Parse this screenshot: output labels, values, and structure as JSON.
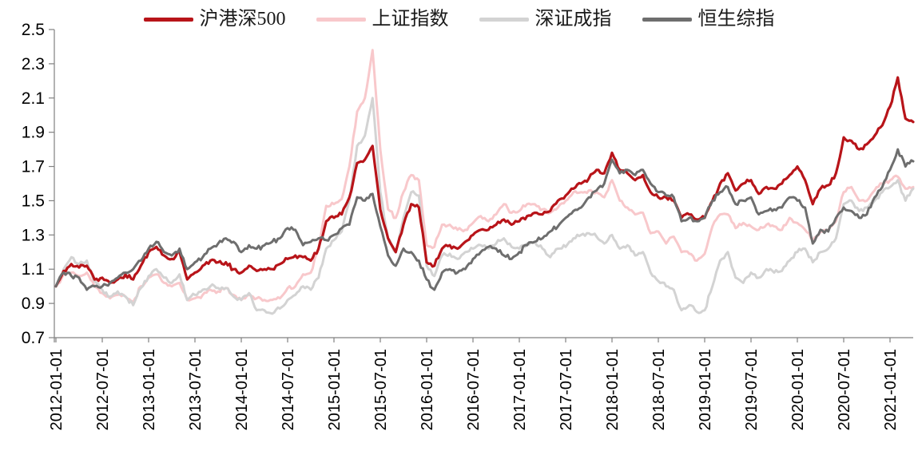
{
  "page": {
    "background": "#ffffff"
  },
  "chart_data": {
    "type": "line",
    "title": "",
    "xlabel": "",
    "ylabel": "",
    "grid": false,
    "legend_position": "top",
    "axis_color": "#808080",
    "tick_label_color": "#000000",
    "ylim": [
      0.7,
      2.5
    ],
    "y_tick_labels": [
      "2.5",
      "2.3",
      "2.1",
      "1.9",
      "1.7",
      "1.5",
      "1.3",
      "1.1",
      "0.9",
      "0.7"
    ],
    "x_tick_labels": [
      "2012-01-01",
      "2012-07-01",
      "2013-01-01",
      "2013-07-01",
      "2014-01-01",
      "2014-07-01",
      "2015-01-01",
      "2015-07-01",
      "2016-01-01",
      "2016-07-01",
      "2017-01-01",
      "2017-07-01",
      "2018-01-01",
      "2018-07-01",
      "2019-01-01",
      "2019-07-01",
      "2020-01-01",
      "2020-07-01",
      "2021-01-01"
    ],
    "x_unit": "monthly values starting 2012-01, all series normalized to 1.0 at 2012-01-01",
    "z_order": [
      1,
      2,
      0,
      3
    ],
    "series": [
      {
        "name": "沪港深500",
        "color": "#b81419",
        "values": [
          1.0,
          1.09,
          1.13,
          1.11,
          1.12,
          1.04,
          1.05,
          1.02,
          1.04,
          1.07,
          1.04,
          1.12,
          1.2,
          1.23,
          1.18,
          1.16,
          1.2,
          1.04,
          1.08,
          1.12,
          1.15,
          1.14,
          1.14,
          1.1,
          1.08,
          1.12,
          1.09,
          1.1,
          1.1,
          1.13,
          1.16,
          1.18,
          1.17,
          1.15,
          1.22,
          1.38,
          1.4,
          1.42,
          1.52,
          1.72,
          1.74,
          1.82,
          1.45,
          1.28,
          1.2,
          1.36,
          1.48,
          1.46,
          1.14,
          1.12,
          1.22,
          1.24,
          1.22,
          1.26,
          1.3,
          1.33,
          1.33,
          1.36,
          1.39,
          1.36,
          1.38,
          1.41,
          1.43,
          1.42,
          1.44,
          1.5,
          1.53,
          1.57,
          1.6,
          1.63,
          1.68,
          1.66,
          1.78,
          1.68,
          1.66,
          1.62,
          1.65,
          1.55,
          1.52,
          1.52,
          1.5,
          1.4,
          1.42,
          1.39,
          1.4,
          1.5,
          1.6,
          1.66,
          1.56,
          1.6,
          1.62,
          1.54,
          1.58,
          1.57,
          1.6,
          1.65,
          1.7,
          1.62,
          1.48,
          1.57,
          1.59,
          1.66,
          1.87,
          1.85,
          1.8,
          1.83,
          1.88,
          1.94,
          2.05,
          2.22,
          1.98,
          1.96
        ]
      },
      {
        "name": "上证指数",
        "color": "#f8c8cb",
        "values": [
          1.0,
          1.07,
          1.08,
          1.06,
          1.08,
          1.0,
          0.96,
          0.93,
          0.95,
          0.94,
          0.91,
          1.0,
          1.05,
          1.07,
          1.02,
          1.0,
          1.02,
          0.92,
          0.93,
          0.95,
          0.98,
          0.97,
          0.99,
          0.95,
          0.92,
          0.95,
          0.93,
          0.92,
          0.92,
          0.93,
          0.99,
          1.0,
          1.07,
          1.08,
          1.22,
          1.47,
          1.48,
          1.51,
          1.7,
          2.02,
          2.1,
          2.38,
          1.8,
          1.45,
          1.4,
          1.55,
          1.65,
          1.62,
          1.24,
          1.23,
          1.36,
          1.36,
          1.33,
          1.33,
          1.37,
          1.41,
          1.38,
          1.42,
          1.48,
          1.43,
          1.44,
          1.48,
          1.48,
          1.45,
          1.43,
          1.46,
          1.5,
          1.55,
          1.55,
          1.56,
          1.55,
          1.52,
          1.62,
          1.5,
          1.46,
          1.42,
          1.43,
          1.31,
          1.32,
          1.25,
          1.29,
          1.2,
          1.19,
          1.15,
          1.19,
          1.35,
          1.42,
          1.42,
          1.34,
          1.37,
          1.35,
          1.33,
          1.36,
          1.35,
          1.33,
          1.4,
          1.37,
          1.33,
          1.27,
          1.32,
          1.33,
          1.38,
          1.55,
          1.58,
          1.5,
          1.5,
          1.56,
          1.6,
          1.62,
          1.64,
          1.57,
          1.58
        ]
      },
      {
        "name": "深证成指",
        "color": "#d3d3d3",
        "values": [
          1.0,
          1.1,
          1.17,
          1.13,
          1.15,
          1.03,
          0.98,
          0.94,
          0.97,
          0.94,
          0.89,
          0.99,
          1.06,
          1.1,
          1.05,
          1.02,
          1.07,
          0.92,
          0.95,
          0.98,
          1.0,
          0.99,
          0.99,
          0.94,
          0.92,
          0.96,
          0.86,
          0.86,
          0.84,
          0.87,
          0.92,
          0.95,
          1.0,
          0.98,
          1.05,
          1.22,
          1.27,
          1.32,
          1.5,
          1.82,
          1.88,
          2.1,
          1.55,
          1.28,
          1.2,
          1.4,
          1.55,
          1.53,
          1.12,
          1.06,
          1.18,
          1.19,
          1.16,
          1.2,
          1.22,
          1.24,
          1.22,
          1.25,
          1.28,
          1.23,
          1.22,
          1.25,
          1.26,
          1.22,
          1.17,
          1.22,
          1.23,
          1.28,
          1.3,
          1.31,
          1.29,
          1.25,
          1.3,
          1.22,
          1.24,
          1.18,
          1.2,
          1.08,
          1.03,
          1.0,
          0.98,
          0.86,
          0.89,
          0.85,
          0.86,
          1.0,
          1.15,
          1.2,
          1.05,
          1.02,
          1.08,
          1.05,
          1.1,
          1.08,
          1.09,
          1.15,
          1.2,
          1.22,
          1.14,
          1.2,
          1.22,
          1.28,
          1.48,
          1.5,
          1.44,
          1.46,
          1.5,
          1.55,
          1.58,
          1.62,
          1.5,
          1.57
        ]
      },
      {
        "name": "恒生综指",
        "color": "#6e6e6e",
        "values": [
          1.0,
          1.08,
          1.06,
          1.05,
          0.98,
          1.0,
          1.0,
          1.02,
          1.05,
          1.08,
          1.1,
          1.15,
          1.22,
          1.26,
          1.2,
          1.18,
          1.22,
          1.1,
          1.14,
          1.17,
          1.22,
          1.25,
          1.28,
          1.26,
          1.2,
          1.24,
          1.22,
          1.24,
          1.26,
          1.28,
          1.34,
          1.33,
          1.24,
          1.26,
          1.28,
          1.27,
          1.3,
          1.34,
          1.36,
          1.52,
          1.5,
          1.54,
          1.35,
          1.18,
          1.12,
          1.22,
          1.2,
          1.15,
          1.04,
          0.98,
          1.08,
          1.1,
          1.08,
          1.1,
          1.16,
          1.2,
          1.23,
          1.22,
          1.18,
          1.16,
          1.2,
          1.24,
          1.26,
          1.28,
          1.32,
          1.35,
          1.4,
          1.44,
          1.46,
          1.52,
          1.56,
          1.6,
          1.74,
          1.66,
          1.68,
          1.65,
          1.68,
          1.6,
          1.55,
          1.53,
          1.52,
          1.38,
          1.4,
          1.38,
          1.4,
          1.5,
          1.55,
          1.58,
          1.48,
          1.5,
          1.52,
          1.42,
          1.44,
          1.45,
          1.46,
          1.52,
          1.5,
          1.46,
          1.25,
          1.33,
          1.32,
          1.4,
          1.46,
          1.44,
          1.4,
          1.42,
          1.52,
          1.58,
          1.68,
          1.8,
          1.7,
          1.73
        ]
      }
    ]
  }
}
